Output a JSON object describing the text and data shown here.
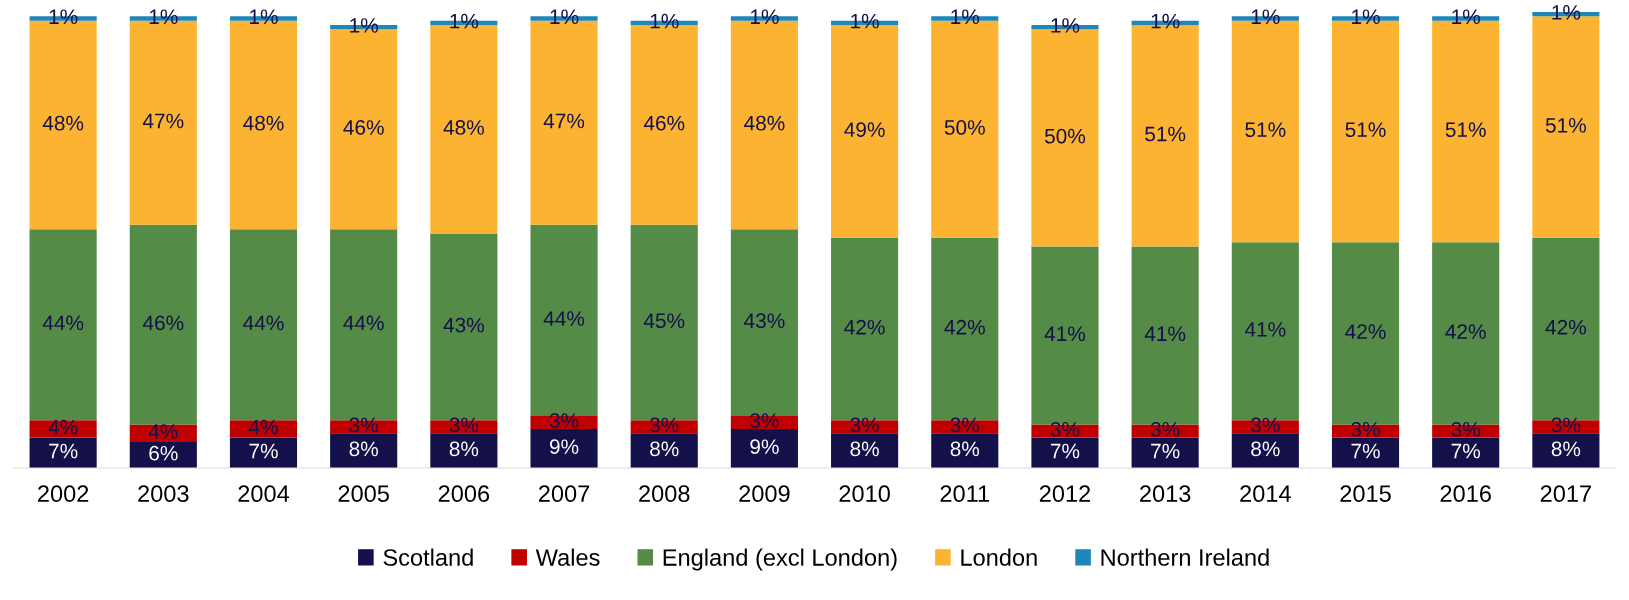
{
  "chart_data": {
    "type": "bar",
    "stacked": true,
    "legend": "bottom",
    "grid": false,
    "categories": [
      "2002",
      "2003",
      "2004",
      "2005",
      "2006",
      "2007",
      "2008",
      "2009",
      "2010",
      "2011",
      "2012",
      "2013",
      "2014",
      "2015",
      "2016",
      "2017"
    ],
    "series": [
      {
        "name": "Scotland",
        "color": "#14104a",
        "values": [
          7,
          6,
          7,
          8,
          8,
          9,
          8,
          9,
          8,
          8,
          7,
          7,
          8,
          7,
          7,
          8
        ],
        "value_labels": [
          "7%",
          "6%",
          "7%",
          "8%",
          "8%",
          "9%",
          "8%",
          "9%",
          "8%",
          "8%",
          "7%",
          "7%",
          "8%",
          "7%",
          "7%",
          "8%"
        ]
      },
      {
        "name": "Wales",
        "color": "#c00000",
        "values": [
          4,
          4,
          4,
          3,
          3,
          3,
          3,
          3,
          3,
          3,
          3,
          3,
          3,
          3,
          3,
          3
        ],
        "value_labels": [
          "4%",
          "4%",
          "4%",
          "3%",
          "3%",
          "3%",
          "3%",
          "3%",
          "3%",
          "3%",
          "3%",
          "3%",
          "3%",
          "3%",
          "3%",
          "3%"
        ]
      },
      {
        "name": "England (excl London)",
        "color": "#548b46",
        "values": [
          44,
          46,
          44,
          44,
          43,
          44,
          45,
          43,
          42,
          42,
          41,
          41,
          41,
          42,
          42,
          42
        ],
        "value_labels": [
          "44%",
          "46%",
          "44%",
          "44%",
          "43%",
          "44%",
          "45%",
          "43%",
          "42%",
          "42%",
          "41%",
          "41%",
          "41%",
          "42%",
          "42%",
          "42%"
        ]
      },
      {
        "name": "London",
        "color": "#fbb331",
        "values": [
          48,
          47,
          48,
          46,
          48,
          47,
          46,
          48,
          49,
          50,
          50,
          51,
          51,
          51,
          51,
          51
        ],
        "value_labels": [
          "48%",
          "47%",
          "48%",
          "46%",
          "48%",
          "47%",
          "46%",
          "48%",
          "49%",
          "50%",
          "50%",
          "51%",
          "51%",
          "51%",
          "51%",
          "51%"
        ]
      },
      {
        "name": "Northern Ireland",
        "color": "#1f86b8",
        "values": [
          1,
          1,
          1,
          1,
          1,
          1,
          1,
          1,
          1,
          1,
          1,
          1,
          1,
          1,
          1,
          1
        ],
        "value_labels": [
          "1%",
          "1%",
          "1%",
          "1%",
          "1%",
          "1%",
          "1%",
          "1%",
          "1%",
          "1%",
          "1%",
          "1%",
          "1%",
          "1%",
          "1%",
          "1%"
        ]
      }
    ]
  }
}
